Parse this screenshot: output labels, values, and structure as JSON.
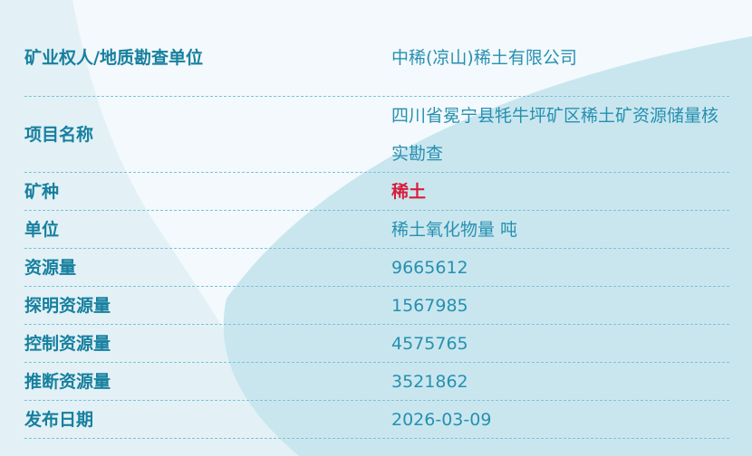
{
  "colors": {
    "label": "#17809f",
    "value": "#2790b0",
    "highlight": "#d81e3c"
  },
  "rows": [
    {
      "label": "矿业权人/地质勘查单位",
      "value": "中稀(凉山)稀土有限公司"
    },
    {
      "label": "项目名称",
      "value": "四川省冕宁县牦牛坪矿区稀土矿资源储量核实勘查"
    },
    {
      "label": "矿种",
      "value": "稀土"
    },
    {
      "label": "单位",
      "value": "稀土氧化物量 吨"
    },
    {
      "label": "资源量",
      "value": "9665612"
    },
    {
      "label": "探明资源量",
      "value": "1567985"
    },
    {
      "label": "控制资源量",
      "value": "4575765"
    },
    {
      "label": "推断资源量",
      "value": "3521862"
    },
    {
      "label": "发布日期",
      "value": "2026-03-09"
    }
  ]
}
